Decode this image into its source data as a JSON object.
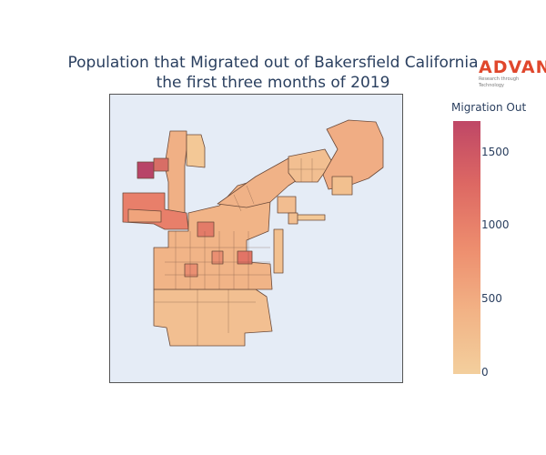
{
  "title": {
    "line1": "Population that Migrated out of Bakersfield California",
    "line2": "the first three months of 2019"
  },
  "logo": {
    "brand": "ADVAN",
    "tagline": "Research through Technology"
  },
  "colorbar": {
    "title": "Migration Out",
    "ticks": [
      "0",
      "500",
      "1000",
      "1500"
    ],
    "colors": [
      "#f3cf9d",
      "#f2b285",
      "#ed8d6e",
      "#dd6863",
      "#bf4766"
    ]
  },
  "map": {
    "background": "#e5ecf6",
    "region_stroke": "#6b4a3a"
  }
}
